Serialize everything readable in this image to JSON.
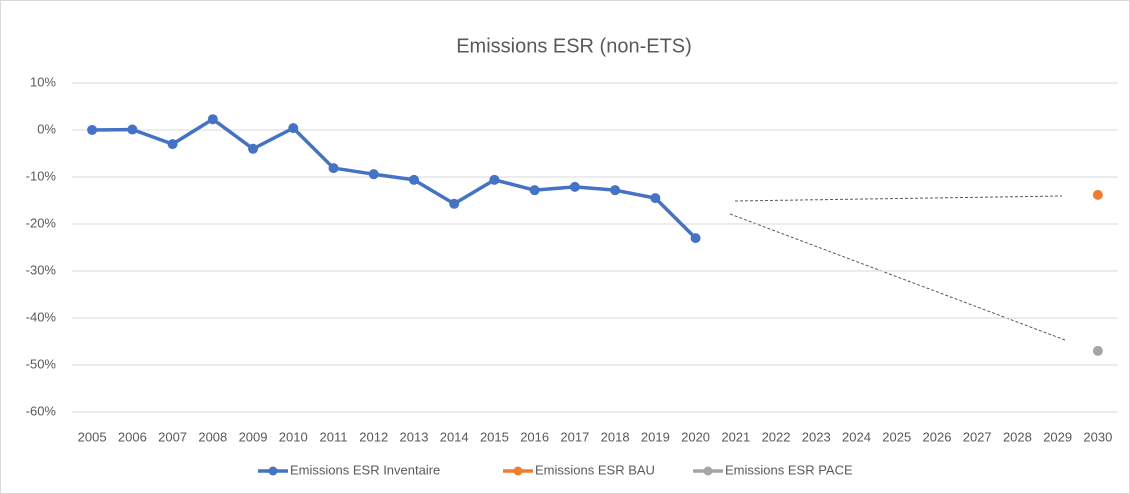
{
  "chart_data": {
    "type": "line",
    "title": "Emissions ESR (non-ETS)",
    "categories": [
      "2005",
      "2006",
      "2007",
      "2008",
      "2009",
      "2010",
      "2011",
      "2012",
      "2013",
      "2014",
      "2015",
      "2016",
      "2017",
      "2018",
      "2019",
      "2020",
      "2021",
      "2022",
      "2023",
      "2024",
      "2025",
      "2026",
      "2027",
      "2028",
      "2029",
      "2030"
    ],
    "series": [
      {
        "name": "Emissions ESR Inventaire",
        "color": "#4472c4",
        "values": [
          0,
          0.1,
          -3,
          2.3,
          -4,
          0.4,
          -8.1,
          -9.4,
          -10.6,
          -15.7,
          -10.6,
          -12.8,
          -12.1,
          -12.8,
          -14.5,
          -23,
          null,
          null,
          null,
          null,
          null,
          null,
          null,
          null,
          null,
          null
        ]
      },
      {
        "name": "Emissions ESR BAU",
        "color": "#ed7d31",
        "values": [
          null,
          null,
          null,
          null,
          null,
          null,
          null,
          null,
          null,
          null,
          null,
          null,
          null,
          null,
          null,
          null,
          null,
          null,
          null,
          null,
          null,
          null,
          null,
          null,
          null,
          -13.8
        ]
      },
      {
        "name": "Emissions ESR PACE",
        "color": "#a5a5a5",
        "values": [
          null,
          null,
          null,
          null,
          null,
          null,
          null,
          null,
          null,
          null,
          null,
          null,
          null,
          null,
          null,
          null,
          null,
          null,
          null,
          null,
          null,
          null,
          null,
          null,
          null,
          -47
        ]
      }
    ],
    "ylim": [
      -60,
      10
    ],
    "yticks": [
      {
        "value": -60,
        "label": "-60%"
      },
      {
        "value": -50,
        "label": "-50%"
      },
      {
        "value": -40,
        "label": "-40%"
      },
      {
        "value": -30,
        "label": "-30%"
      },
      {
        "value": -20,
        "label": "-20%"
      },
      {
        "value": -10,
        "label": "-10%"
      },
      {
        "value": 0,
        "label": "0%"
      },
      {
        "value": 10,
        "label": "10%"
      }
    ],
    "grid": true,
    "legend": "bottom"
  }
}
